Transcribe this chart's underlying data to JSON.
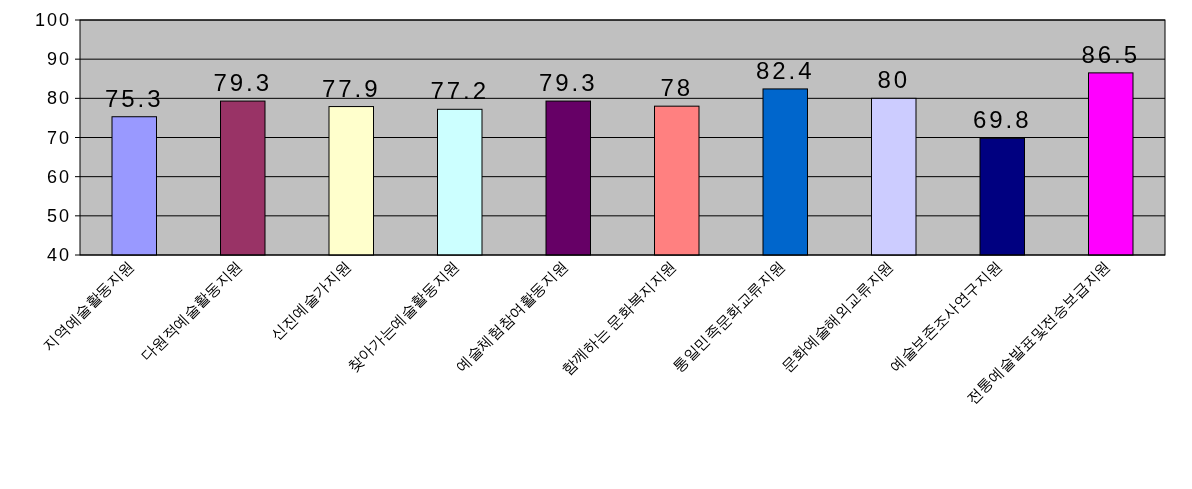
{
  "chart_data": {
    "type": "bar",
    "categories": [
      "지역예술활동지원",
      "다원적예술활동지원",
      "신진예술가지원",
      "찾아가는예술활동지원",
      "예술체험참여활동지원",
      "함께하는 문화복지지원",
      "통일민족문화교류지원",
      "문화예술해외교류지원",
      "예술보존조사연구지원",
      "전통예술발표및전승보급지원"
    ],
    "values": [
      75.3,
      79.3,
      77.9,
      77.2,
      79.3,
      78,
      82.4,
      80,
      69.8,
      86.5
    ],
    "colors": [
      "#9999ff",
      "#993366",
      "#ffffcc",
      "#ccffff",
      "#660066",
      "#ff8080",
      "#0066cc",
      "#ccccff",
      "#000080",
      "#ff00ff"
    ],
    "ylim": [
      40,
      100
    ],
    "yticks": [
      40,
      50,
      60,
      70,
      80,
      90,
      100
    ],
    "grid": "y",
    "data_labels": true
  }
}
